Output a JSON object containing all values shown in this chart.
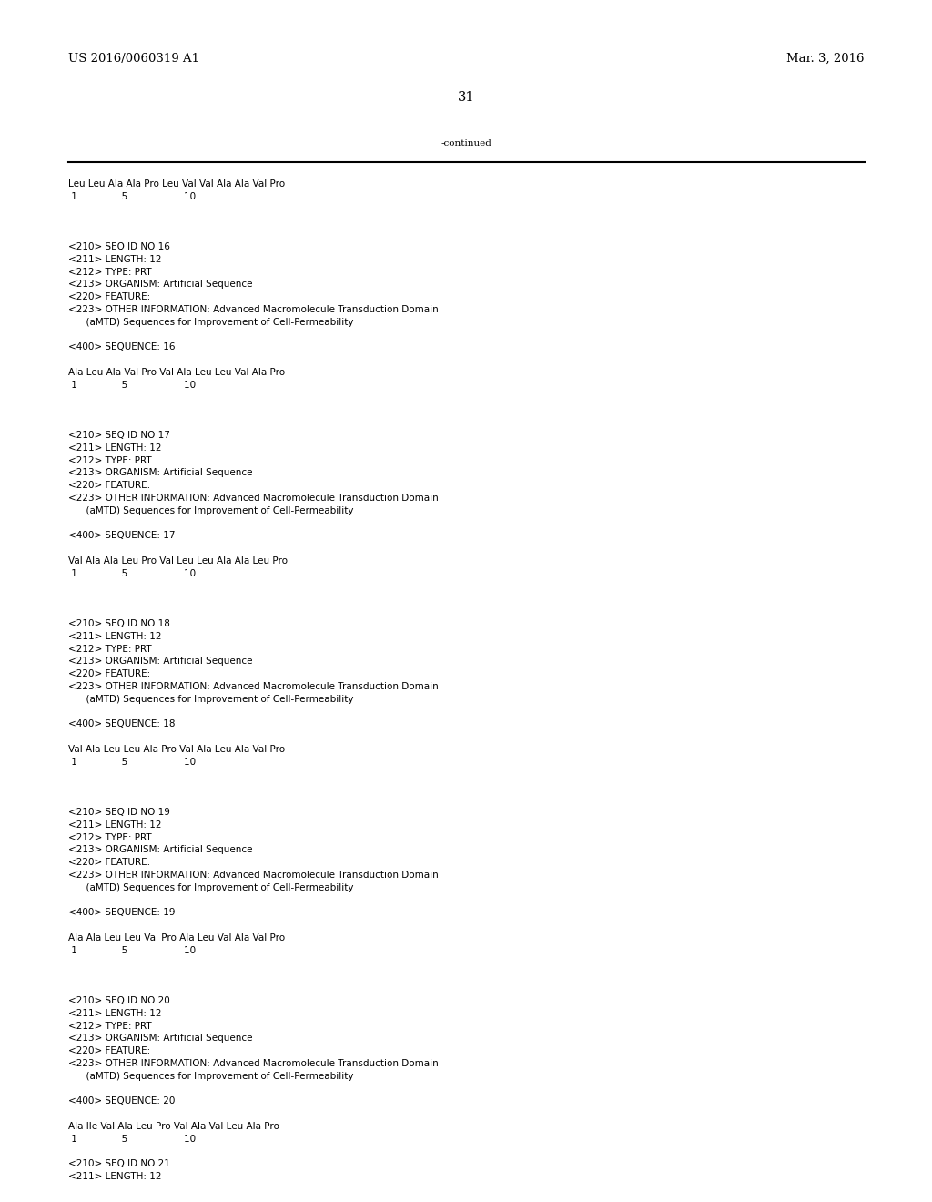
{
  "bg_color": "#ffffff",
  "left_header": "US 2016/0060319 A1",
  "right_header": "Mar. 3, 2016",
  "page_number": "31",
  "continued_label": "-continued",
  "font_size_header": 9.5,
  "font_size_body": 7.5,
  "font_size_page": 10.5,
  "mono_font": "Courier New",
  "serif_font": "DejaVu Serif",
  "content_lines": [
    "Leu Leu Ala Ala Pro Leu Val Val Ala Ala Val Pro",
    " 1               5                   10",
    "",
    "",
    "",
    "<210> SEQ ID NO 16",
    "<211> LENGTH: 12",
    "<212> TYPE: PRT",
    "<213> ORGANISM: Artificial Sequence",
    "<220> FEATURE:",
    "<223> OTHER INFORMATION: Advanced Macromolecule Transduction Domain",
    "      (aMTD) Sequences for Improvement of Cell-Permeability",
    "",
    "<400> SEQUENCE: 16",
    "",
    "Ala Leu Ala Val Pro Val Ala Leu Leu Val Ala Pro",
    " 1               5                   10",
    "",
    "",
    "",
    "<210> SEQ ID NO 17",
    "<211> LENGTH: 12",
    "<212> TYPE: PRT",
    "<213> ORGANISM: Artificial Sequence",
    "<220> FEATURE:",
    "<223> OTHER INFORMATION: Advanced Macromolecule Transduction Domain",
    "      (aMTD) Sequences for Improvement of Cell-Permeability",
    "",
    "<400> SEQUENCE: 17",
    "",
    "Val Ala Ala Leu Pro Val Leu Leu Ala Ala Leu Pro",
    " 1               5                   10",
    "",
    "",
    "",
    "<210> SEQ ID NO 18",
    "<211> LENGTH: 12",
    "<212> TYPE: PRT",
    "<213> ORGANISM: Artificial Sequence",
    "<220> FEATURE:",
    "<223> OTHER INFORMATION: Advanced Macromolecule Transduction Domain",
    "      (aMTD) Sequences for Improvement of Cell-Permeability",
    "",
    "<400> SEQUENCE: 18",
    "",
    "Val Ala Leu Leu Ala Pro Val Ala Leu Ala Val Pro",
    " 1               5                   10",
    "",
    "",
    "",
    "<210> SEQ ID NO 19",
    "<211> LENGTH: 12",
    "<212> TYPE: PRT",
    "<213> ORGANISM: Artificial Sequence",
    "<220> FEATURE:",
    "<223> OTHER INFORMATION: Advanced Macromolecule Transduction Domain",
    "      (aMTD) Sequences for Improvement of Cell-Permeability",
    "",
    "<400> SEQUENCE: 19",
    "",
    "Ala Ala Leu Leu Val Pro Ala Leu Val Ala Val Pro",
    " 1               5                   10",
    "",
    "",
    "",
    "<210> SEQ ID NO 20",
    "<211> LENGTH: 12",
    "<212> TYPE: PRT",
    "<213> ORGANISM: Artificial Sequence",
    "<220> FEATURE:",
    "<223> OTHER INFORMATION: Advanced Macromolecule Transduction Domain",
    "      (aMTD) Sequences for Improvement of Cell-Permeability",
    "",
    "<400> SEQUENCE: 20",
    "",
    "Ala Ile Val Ala Leu Pro Val Ala Val Leu Ala Pro",
    " 1               5                   10",
    "",
    "<210> SEQ ID NO 21",
    "<211> LENGTH: 12"
  ]
}
